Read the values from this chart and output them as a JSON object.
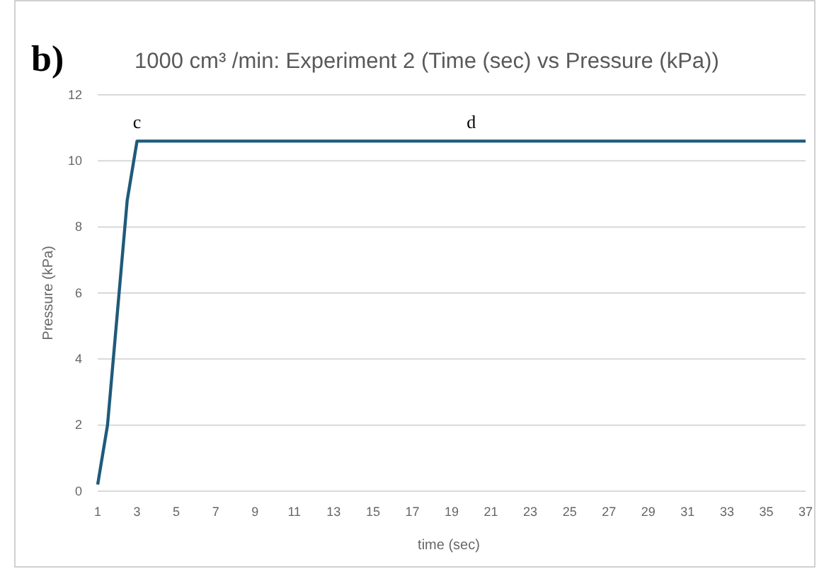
{
  "chart_data": {
    "type": "line",
    "title": "1000 cm³ /min: Experiment 2 (Time (sec) vs Pressure (kPa))",
    "xlabel": "time (sec)",
    "ylabel": "Pressure (kPa)",
    "x": [
      1,
      1.5,
      2.5,
      3,
      37
    ],
    "series": [
      {
        "color": "#1f5a7a",
        "values": [
          0.2,
          2,
          8.8,
          10.6,
          10.6
        ]
      }
    ],
    "xlim": [
      1,
      37
    ],
    "xticks": [
      1,
      3,
      5,
      7,
      9,
      11,
      13,
      15,
      17,
      19,
      21,
      23,
      25,
      27,
      29,
      31,
      33,
      35,
      37
    ],
    "ylim": [
      0,
      12
    ],
    "yticks": [
      0,
      2,
      4,
      6,
      8,
      10,
      12
    ],
    "grid": "y",
    "marker": "none",
    "line_style": "solid",
    "annotations": [
      "b)",
      {
        "text": "c",
        "x": 3,
        "y": 10.6
      },
      {
        "text": "d",
        "x": 20,
        "y": 10.6
      }
    ]
  }
}
